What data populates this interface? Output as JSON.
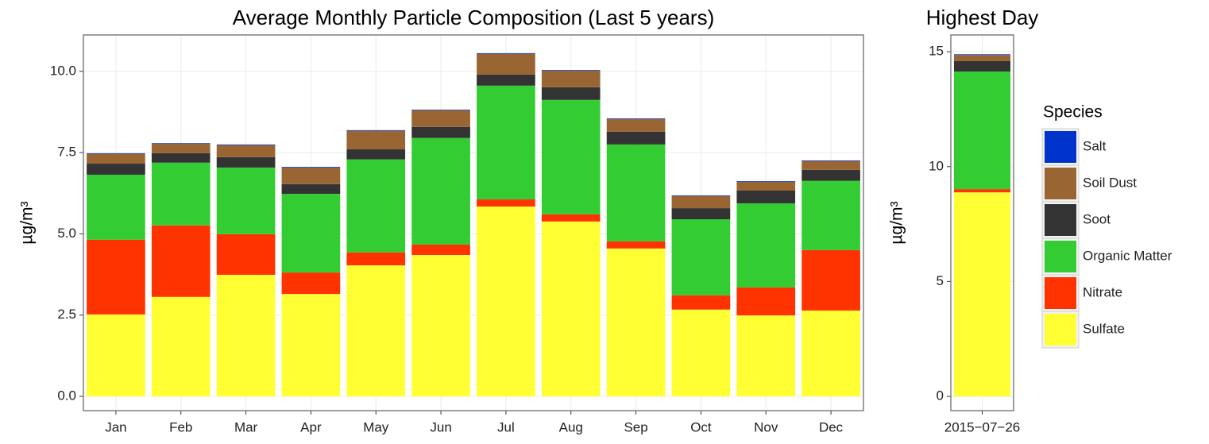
{
  "chart_data": [
    {
      "type": "bar",
      "stacked": true,
      "title": "Average Monthly Particle Composition (Last 5 years)",
      "ylabel": "µg/m³",
      "legend_title": "Species",
      "grid": true,
      "categories": [
        "Jan",
        "Feb",
        "Mar",
        "Apr",
        "May",
        "Jun",
        "Jul",
        "Aug",
        "Sep",
        "Oct",
        "Nov",
        "Dec"
      ],
      "ylim": [
        -0.44,
        11.12
      ],
      "yticks": [
        {
          "value": 0,
          "label": "0.0"
        },
        {
          "value": 2.5,
          "label": "2.5"
        },
        {
          "value": 5,
          "label": "5.0"
        },
        {
          "value": 7.5,
          "label": "7.5"
        },
        {
          "value": 10,
          "label": "10.0"
        }
      ],
      "series": [
        {
          "name": "Sulfate",
          "color": "#ffff33",
          "values": [
            2.52,
            3.06,
            3.74,
            3.15,
            4.03,
            4.35,
            5.84,
            5.38,
            4.55,
            2.67,
            2.49,
            2.64
          ]
        },
        {
          "name": "Nitrate",
          "color": "#ff3300",
          "values": [
            2.3,
            2.2,
            1.25,
            0.66,
            0.4,
            0.32,
            0.22,
            0.22,
            0.22,
            0.44,
            0.86,
            1.86
          ]
        },
        {
          "name": "Organic Matter",
          "color": "#33cc33",
          "values": [
            2.0,
            1.93,
            2.05,
            2.42,
            2.86,
            3.28,
            3.5,
            3.52,
            2.98,
            2.34,
            2.59,
            2.13
          ]
        },
        {
          "name": "Soot",
          "color": "#333333",
          "values": [
            0.34,
            0.29,
            0.32,
            0.3,
            0.31,
            0.34,
            0.34,
            0.39,
            0.39,
            0.34,
            0.39,
            0.34
          ]
        },
        {
          "name": "Soil Dust",
          "color": "#996633",
          "values": [
            0.3,
            0.29,
            0.37,
            0.51,
            0.57,
            0.51,
            0.64,
            0.51,
            0.39,
            0.37,
            0.27,
            0.27
          ]
        },
        {
          "name": "Salt",
          "color": "#0033cc",
          "values": [
            0.02,
            0.02,
            0.02,
            0.02,
            0.02,
            0.02,
            0.02,
            0.02,
            0.02,
            0.02,
            0.02,
            0.02
          ]
        }
      ]
    },
    {
      "type": "bar",
      "stacked": true,
      "title": "Highest Day",
      "ylabel": "µg/m³",
      "grid": true,
      "categories": [
        "2015−07−26"
      ],
      "ylim": [
        -0.62,
        15.73
      ],
      "yticks": [
        0,
        5,
        10,
        15
      ],
      "series": [
        {
          "name": "Sulfate",
          "color": "#ffff33",
          "values": [
            8.88
          ]
        },
        {
          "name": "Nitrate",
          "color": "#ff3300",
          "values": [
            0.14
          ]
        },
        {
          "name": "Organic Matter",
          "color": "#33cc33",
          "values": [
            5.12
          ]
        },
        {
          "name": "Soot",
          "color": "#333333",
          "values": [
            0.45
          ]
        },
        {
          "name": "Soil Dust",
          "color": "#996633",
          "values": [
            0.27
          ]
        },
        {
          "name": "Salt",
          "color": "#0033cc",
          "values": [
            0.03
          ]
        }
      ]
    }
  ]
}
